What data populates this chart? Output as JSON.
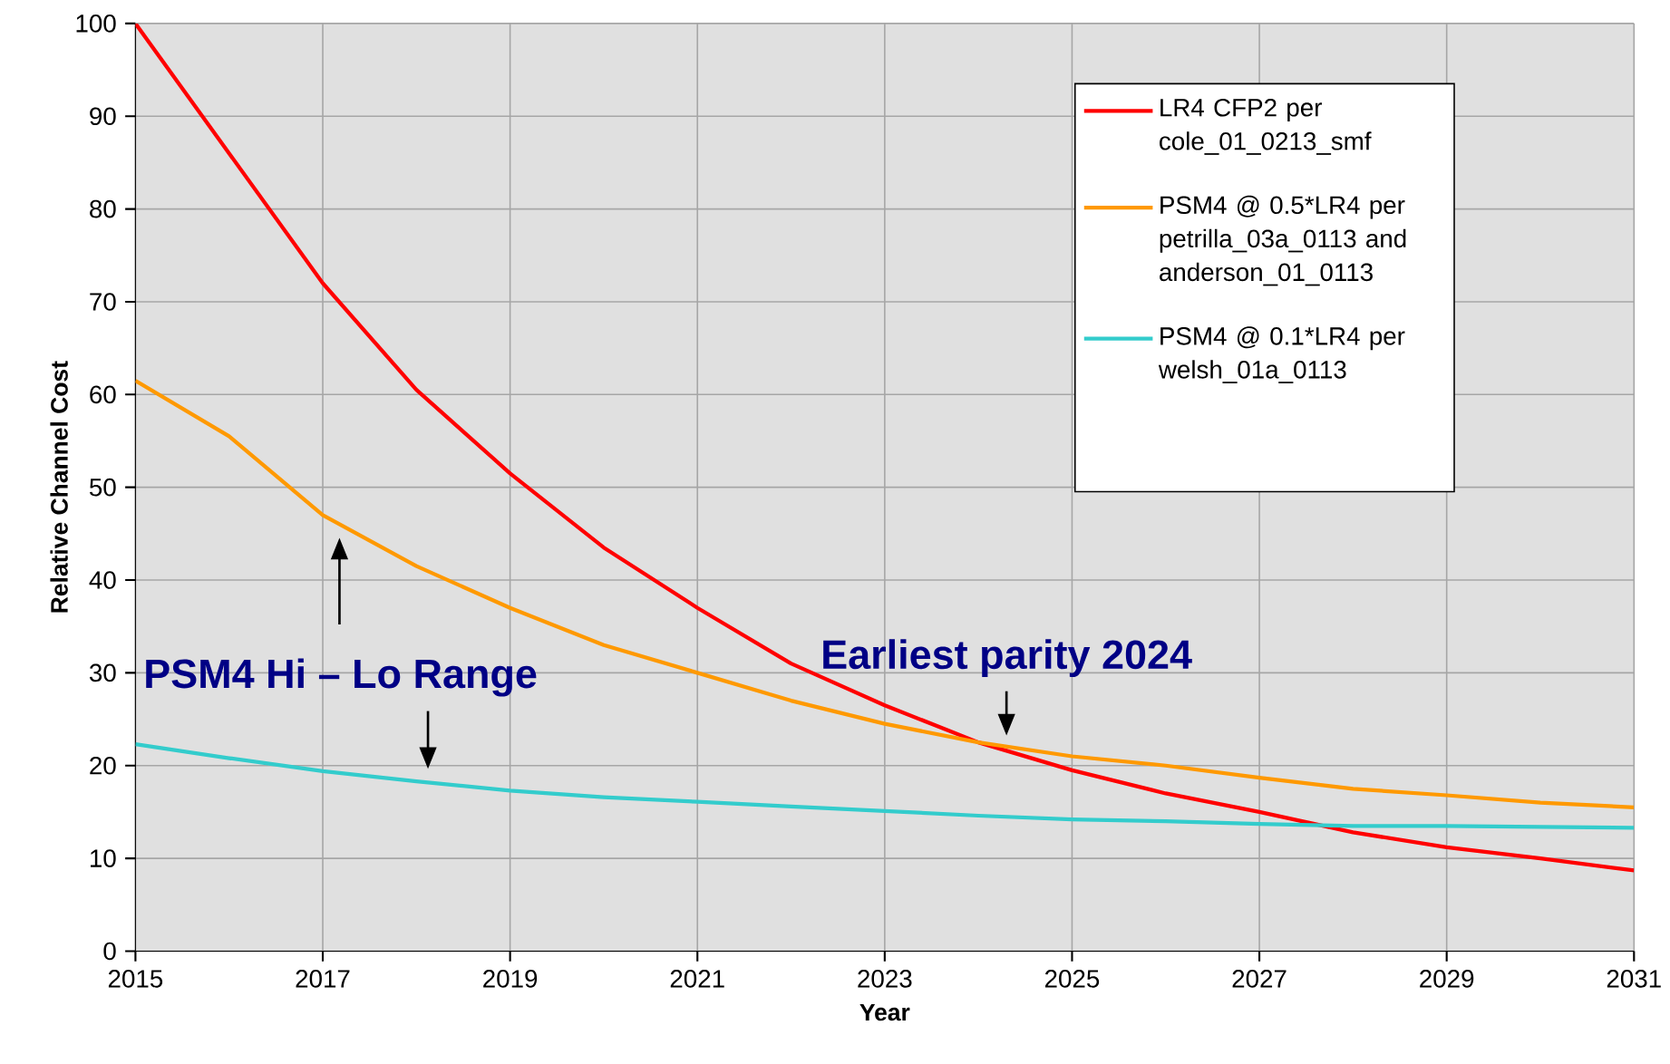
{
  "chart_data": {
    "type": "line",
    "xlabel": "Year",
    "ylabel": "Relative Channel Cost",
    "x": [
      2015,
      2016,
      2017,
      2018,
      2019,
      2020,
      2021,
      2022,
      2023,
      2024,
      2025,
      2026,
      2027,
      2028,
      2029,
      2030,
      2031
    ],
    "series": [
      {
        "name": "LR4 CFP2 per cole_01_0213_smf",
        "color": "#ff0000",
        "values": [
          100,
          86,
          72,
          60.5,
          51.5,
          43.5,
          37,
          31,
          26.5,
          22.5,
          19.5,
          17,
          15,
          12.8,
          11.2,
          10,
          8.7
        ]
      },
      {
        "name": "PSM4 @ 0.5*LR4 per petrilla_03a_0113 and anderson_01_0113",
        "color": "#ff9900",
        "values": [
          61.5,
          55.5,
          47,
          41.5,
          37,
          33,
          30,
          27,
          24.5,
          22.5,
          21,
          20,
          18.7,
          17.5,
          16.8,
          16,
          15.5
        ]
      },
      {
        "name": "PSM4 @ 0.1*LR4 per welsh_01a_0113",
        "color": "#33cccc",
        "values": [
          22.3,
          20.8,
          19.4,
          18.3,
          17.3,
          16.6,
          16.1,
          15.6,
          15.1,
          14.6,
          14.2,
          14,
          13.7,
          13.5,
          13.5,
          13.4,
          13.3
        ]
      }
    ],
    "xlim": [
      2015,
      2031
    ],
    "xticks": [
      2015,
      2017,
      2019,
      2021,
      2023,
      2025,
      2027,
      2029,
      2031
    ],
    "ylim": [
      0,
      100
    ],
    "yticks": [
      0,
      10,
      20,
      30,
      40,
      50,
      60,
      70,
      80,
      90,
      100
    ],
    "grid": true,
    "legend": "top right",
    "marker": "none",
    "line_style": "solid",
    "annotations": [
      "PSM4 Hi – Lo Range",
      {
        "text": "Earliest parity 2024",
        "x": 2024.3,
        "y": 22.5
      }
    ]
  }
}
